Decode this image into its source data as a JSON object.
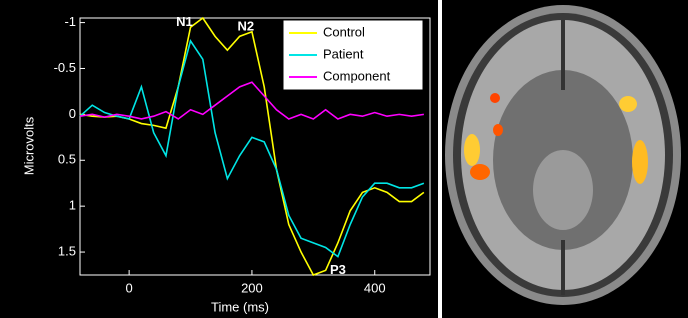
{
  "chart_data": {
    "type": "line",
    "ylabel": "Microvolts",
    "xlabel": "Time (ms)",
    "x": [
      -80,
      -60,
      -40,
      -20,
      0,
      20,
      40,
      60,
      80,
      100,
      120,
      140,
      160,
      180,
      200,
      220,
      240,
      260,
      280,
      300,
      320,
      340,
      360,
      380,
      400,
      420,
      440,
      460,
      480
    ],
    "series": [
      {
        "name": "Control",
        "color": "#ffff00",
        "values": [
          0,
          0.02,
          0.03,
          0.02,
          0.05,
          0.1,
          0.12,
          0.15,
          -0.3,
          -0.95,
          -1.05,
          -0.85,
          -0.7,
          -0.85,
          -0.9,
          -0.3,
          0.6,
          1.2,
          1.5,
          1.75,
          1.7,
          1.4,
          1.05,
          0.85,
          0.8,
          0.85,
          0.95,
          0.95,
          0.85
        ]
      },
      {
        "name": "Patient",
        "color": "#00e5e5",
        "values": [
          0.02,
          -0.1,
          -0.02,
          0.02,
          0.05,
          -0.3,
          0.2,
          0.45,
          -0.3,
          -0.8,
          -0.6,
          0.2,
          0.7,
          0.45,
          0.25,
          0.3,
          0.6,
          1.1,
          1.35,
          1.4,
          1.45,
          1.55,
          1.2,
          0.9,
          0.75,
          0.75,
          0.8,
          0.8,
          0.75
        ]
      },
      {
        "name": "Component",
        "color": "#ff00ff",
        "values": [
          0.02,
          0.0,
          0.03,
          0.0,
          0.02,
          0.05,
          0.02,
          -0.03,
          0.05,
          -0.05,
          0.0,
          -0.1,
          -0.2,
          -0.3,
          -0.35,
          -0.2,
          -0.05,
          0.05,
          0.0,
          0.05,
          -0.05,
          0.05,
          0.0,
          0.02,
          -0.02,
          0.02,
          0.0,
          0.02,
          0.0
        ]
      }
    ],
    "annotations": [
      {
        "text": "N1",
        "x": 90,
        "y": -1.0
      },
      {
        "text": "N2",
        "x": 190,
        "y": -0.95
      },
      {
        "text": "P3",
        "x": 340,
        "y": 1.7
      }
    ],
    "xlim": [
      -80,
      490
    ],
    "ylim": [
      -1.05,
      1.75
    ],
    "y_inverted": true,
    "xticks": [
      0,
      200,
      400
    ],
    "yticks": [
      -1,
      -0.5,
      0,
      0.5,
      1,
      1.5
    ],
    "legend": "upper right"
  }
}
